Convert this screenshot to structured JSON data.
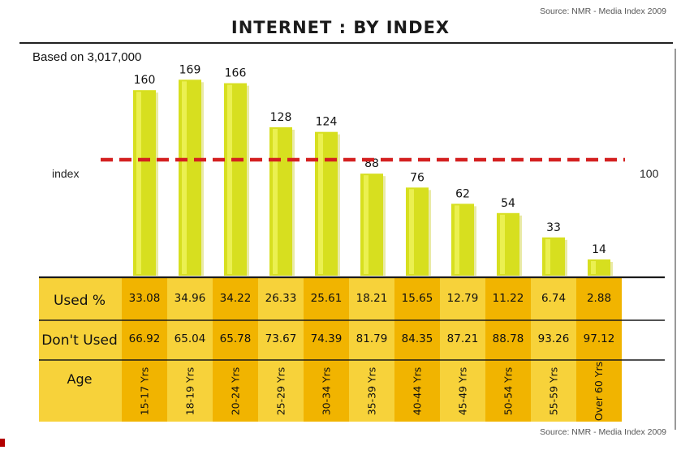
{
  "source_top": "Source: NMR - Media Index 2009",
  "source_bottom": "Source: NMR - Media Index 2009",
  "title": "INTERNET : BY INDEX",
  "based_on": "Based on 3,017,000",
  "index_label": "index",
  "index_value": "100",
  "row_labels": {
    "used": "Used %",
    "dont_used": "Don't Used",
    "age": "Age"
  },
  "colors": {
    "bar": "#d7df1f",
    "bar_highlight": "#eef35a",
    "index_line": "#d42020",
    "table_light": "#f7d23a",
    "table_dark": "#f1b400",
    "table_rule": "#1a1a1a"
  },
  "chart_data": {
    "type": "bar",
    "categories": [
      "15-17 Yrs",
      "18-19 Yrs",
      "20-24 Yrs",
      "25-29 Yrs",
      "30-34 Yrs",
      "35-39 Yrs",
      "40-44 Yrs",
      "45-49 Yrs",
      "50-54 Yrs",
      "55-59 Yrs",
      "Over 60 Yrs"
    ],
    "values": [
      160,
      169,
      166,
      128,
      124,
      88,
      76,
      62,
      54,
      33,
      14
    ],
    "reference_line": 100,
    "used_pct": [
      "33.08",
      "34.96",
      "34.22",
      "26.33",
      "25.61",
      "18.21",
      "15.65",
      "12.79",
      "11.22",
      "6.74",
      "2.88"
    ],
    "dont_used_pct": [
      "66.92",
      "65.04",
      "65.78",
      "73.67",
      "74.39",
      "81.79",
      "84.35",
      "87.21",
      "88.78",
      "93.26",
      "97.12"
    ],
    "title": "INTERNET : BY INDEX",
    "xlabel": "Age",
    "ylabel": "",
    "ylim": [
      0,
      180
    ]
  }
}
